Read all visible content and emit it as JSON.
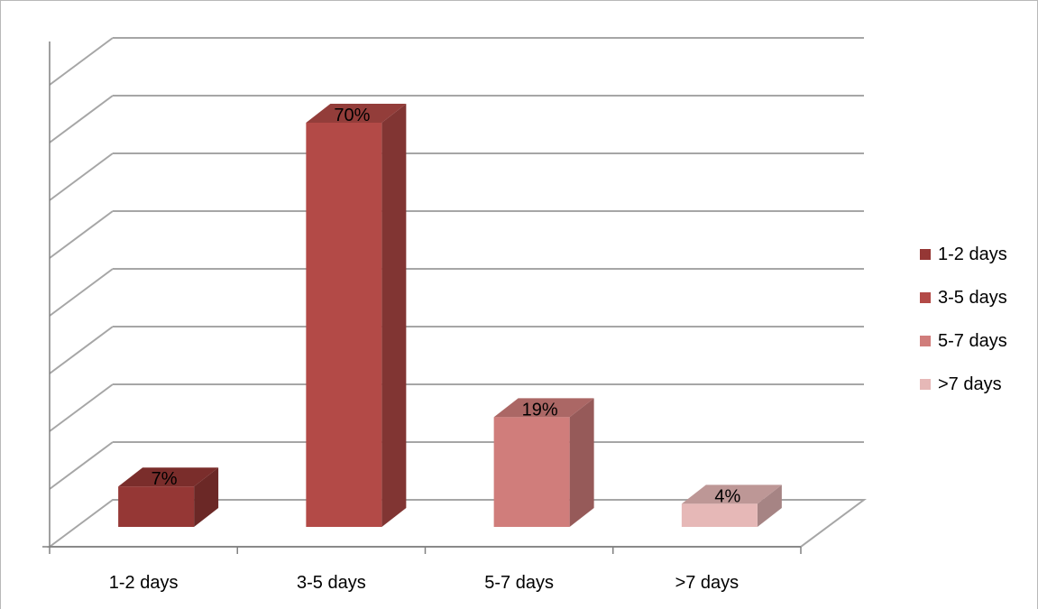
{
  "chart_data": {
    "type": "bar",
    "categories": [
      "1-2 days",
      "3-5 days",
      "5-7 days",
      ">7 days"
    ],
    "values": [
      7,
      70,
      19,
      4
    ],
    "value_labels": [
      "7%",
      "70%",
      "19%",
      "4%"
    ],
    "colors": [
      "#953735",
      "#b34a47",
      "#d07d7b",
      "#e6b8b7"
    ],
    "ylim": [
      0,
      80
    ],
    "grid": true,
    "legend_position": "right",
    "legend": [
      "1-2 days",
      "3-5 days",
      "5-7 days",
      ">7 days"
    ],
    "style": "3d-column"
  }
}
